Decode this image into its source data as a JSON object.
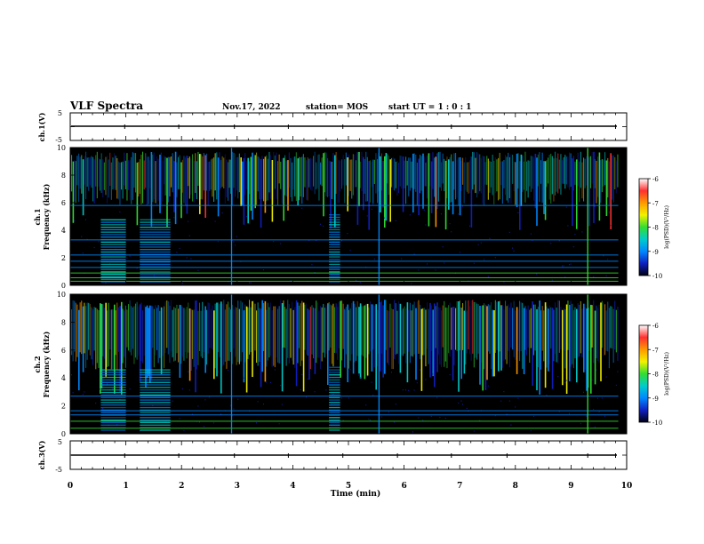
{
  "header": {
    "title": "VLF Spectra",
    "date": "Nov.17, 2022",
    "station": "station= MOS",
    "start": "start UT =  1 : 0 : 1"
  },
  "colorbar": {
    "label": "log(PSD)(V²/Hz)",
    "ticks": [
      "-6",
      "-7",
      "-8",
      "-9",
      "-10"
    ],
    "colors": [
      "#ffffff",
      "#ff3030",
      "#ff9900",
      "#f2f200",
      "#33dd33",
      "#00cccc",
      "#0088ff",
      "#1020c0",
      "#000010"
    ]
  },
  "chart_data": [
    {
      "type": "line",
      "panel": "ch1-waveform",
      "ylabel": "ch.1(V)",
      "yticks": [
        "5",
        "-5"
      ],
      "ylim": [
        -5,
        5
      ],
      "series": [
        {
          "x": [
            0,
            9.85
          ],
          "values": [
            0,
            0
          ]
        }
      ],
      "spikes_x": [
        0.98,
        1.95,
        2.95,
        3.92,
        4.9,
        5.88,
        6.85,
        7.85,
        8.5,
        9.8
      ]
    },
    {
      "type": "heatmap",
      "panel": "ch1-spectrogram",
      "ylabel": "ch.1\nFrequency (kHz)",
      "yticks": [
        "0",
        "2",
        "4",
        "6",
        "8",
        "10"
      ],
      "ylim": [
        0,
        10
      ],
      "xlim": [
        0,
        10
      ],
      "data_end_min": 9.85,
      "noise_band_khz": [
        5.8,
        9.7
      ],
      "lines_khz": [
        0.3,
        0.55,
        0.9,
        1.3,
        1.75,
        2.2,
        3.3,
        5.8
      ],
      "bursts": [
        {
          "x_min": 0.55,
          "x_max": 1.0,
          "f_top": 4.9
        },
        {
          "x_min": 1.25,
          "x_max": 1.8,
          "f_top": 4.9
        },
        {
          "x_min": 4.65,
          "x_max": 4.85,
          "f_top": 5.2
        }
      ],
      "spikes_x": [
        2.9,
        5.55,
        9.3
      ]
    },
    {
      "type": "heatmap",
      "panel": "ch2-spectrogram",
      "ylabel": "ch.2\nFrequency (kHz)",
      "yticks": [
        "0",
        "2",
        "4",
        "6",
        "8",
        "10"
      ],
      "ylim": [
        0,
        10
      ],
      "xlim": [
        0,
        10
      ],
      "data_end_min": 9.85,
      "noise_band_khz": [
        4.6,
        9.6
      ],
      "lines_khz": [
        0.4,
        0.9,
        1.35,
        1.65,
        2.7
      ],
      "bursts": [
        {
          "x_min": 0.55,
          "x_max": 1.0,
          "f_top": 4.8
        },
        {
          "x_min": 1.25,
          "x_max": 1.8,
          "f_top": 4.8
        },
        {
          "x_min": 4.65,
          "x_max": 4.85,
          "f_top": 4.9
        }
      ],
      "spikes_x": [
        2.9,
        5.55,
        9.3
      ]
    },
    {
      "type": "line",
      "panel": "ch3-waveform",
      "ylabel": "ch.3(V)",
      "yticks": [
        "5",
        "-5"
      ],
      "ylim": [
        -5,
        5
      ],
      "xlabel": "Time (min)",
      "xticks": [
        "0",
        "1",
        "2",
        "3",
        "4",
        "5",
        "6",
        "7",
        "8",
        "9",
        "10"
      ],
      "xlim": [
        0,
        10
      ],
      "series": [
        {
          "x": [
            0,
            9.85
          ],
          "values": [
            0,
            0
          ]
        }
      ],
      "spikes_x": [
        0.98,
        1.95,
        2.95,
        3.92,
        4.9,
        5.88,
        6.85,
        7.85,
        9.3,
        9.8
      ]
    }
  ]
}
